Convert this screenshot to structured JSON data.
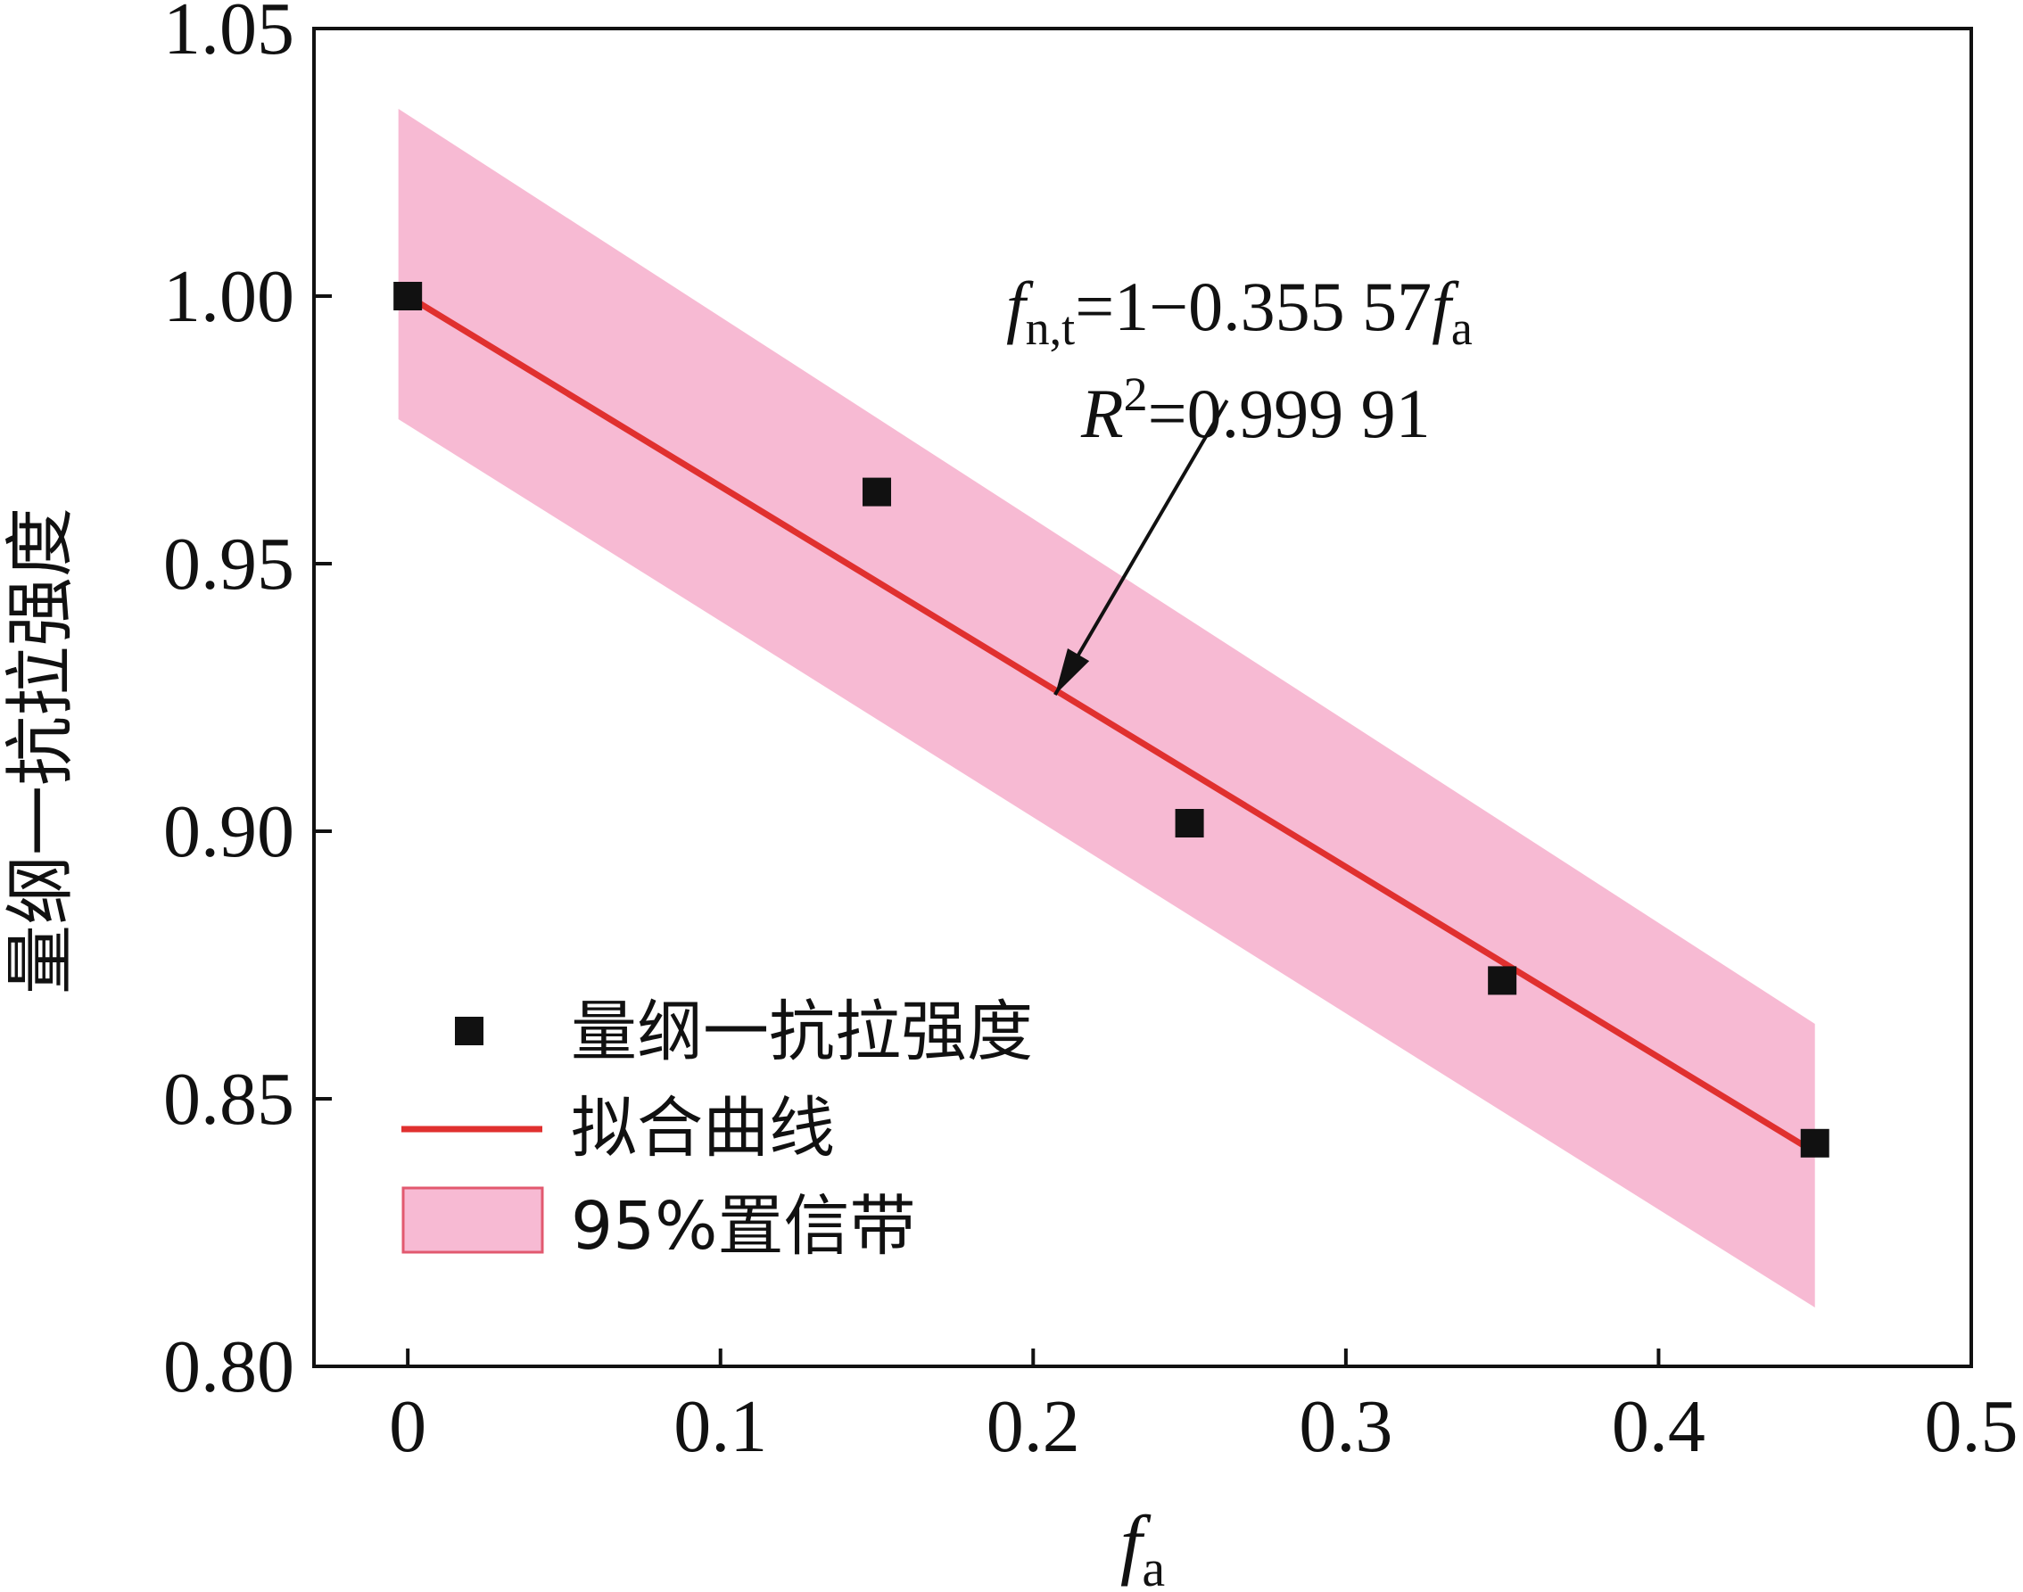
{
  "chart_data": {
    "type": "scatter",
    "title": "",
    "xlabel": {
      "base": "f",
      "sub": "a"
    },
    "ylabel": "量纲一抗拉强度",
    "xlim": [
      -0.03,
      0.5
    ],
    "ylim": [
      0.8,
      1.05
    ],
    "x_ticks": [
      "0",
      "0.1",
      "0.2",
      "0.3",
      "0.4",
      "0.5"
    ],
    "x_tick_values": [
      0,
      0.1,
      0.2,
      0.3,
      0.4,
      0.5
    ],
    "y_ticks": [
      "0.80",
      "0.85",
      "0.90",
      "0.95",
      "1.00",
      "1.05"
    ],
    "y_tick_values": [
      0.8,
      0.85,
      0.9,
      0.95,
      1.0,
      1.05
    ],
    "series": [
      {
        "name": "量纲一抗拉强度",
        "kind": "scatter",
        "marker": "square",
        "color": "#111111",
        "x": [
          0,
          0.15,
          0.25,
          0.35,
          0.45
        ],
        "y": [
          1.0,
          0.9634,
          0.9015,
          0.8721,
          0.8417
        ]
      },
      {
        "name": "拟合曲线",
        "kind": "line",
        "color": "#e0302f",
        "x": [
          0,
          0.45
        ],
        "y": [
          1.0,
          0.84
        ]
      },
      {
        "name": "95%置信带",
        "kind": "band",
        "color": "#f7bad3",
        "x": [
          -0.003,
          0.45
        ],
        "upper": [
          1.035,
          0.864
        ],
        "lower": [
          0.977,
          0.811
        ]
      }
    ],
    "annotation": {
      "lines": [
        {
          "parts": [
            {
              "t": "f",
              "italic": true
            },
            {
              "t": "n,t",
              "sub": true
            },
            {
              "t": "=1−0.355 57"
            },
            {
              "t": "f",
              "italic": true
            },
            {
              "t": "a",
              "sub": true
            }
          ]
        },
        {
          "parts": [
            {
              "t": "R",
              "italic": true
            },
            {
              "t": "2",
              "sup": true
            },
            {
              "t": "=0.999 91"
            }
          ]
        }
      ],
      "arrow_target": {
        "x": 0.207,
        "y": 0.9255
      },
      "arrow_tail": {
        "x": 0.262,
        "y": 0.9805
      }
    },
    "legend": {
      "position": "bottom-left",
      "entries": [
        "量纲一抗拉强度",
        "拟合曲线",
        "95%置信带"
      ]
    },
    "grid": false
  }
}
